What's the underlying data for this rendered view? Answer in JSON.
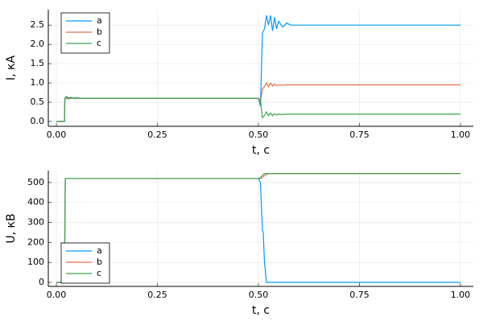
{
  "chart_data": [
    {
      "type": "line",
      "xlabel": "t, c",
      "ylabel": "I, кА",
      "x": [
        0,
        0.02,
        0.021,
        0.025,
        0.03,
        0.035,
        0.04,
        0.05,
        0.06,
        0.1,
        0.5,
        0.505,
        0.51,
        0.515,
        0.52,
        0.525,
        0.53,
        0.535,
        0.54,
        0.545,
        0.55,
        0.56,
        0.57,
        0.58,
        0.6,
        0.7,
        1.0
      ],
      "series": [
        {
          "name": "a",
          "color": "#009af9",
          "values": [
            0,
            0,
            0.6,
            0.65,
            0.6,
            0.63,
            0.6,
            0.62,
            0.6,
            0.6,
            0.6,
            0.4,
            2.3,
            2.4,
            2.75,
            2.5,
            2.75,
            2.35,
            2.7,
            2.4,
            2.6,
            2.45,
            2.55,
            2.5,
            2.5,
            2.5,
            2.5
          ]
        },
        {
          "name": "b",
          "color": "#e26f46",
          "values": [
            0,
            0,
            0.6,
            0.6,
            0.62,
            0.6,
            0.6,
            0.61,
            0.6,
            0.6,
            0.6,
            0.5,
            0.85,
            0.9,
            1.0,
            0.9,
            1.0,
            0.92,
            0.97,
            0.93,
            0.95,
            0.94,
            0.95,
            0.95,
            0.95,
            0.95,
            0.95
          ]
        },
        {
          "name": "c",
          "color": "#3da44d",
          "values": [
            0,
            0,
            0.6,
            0.63,
            0.58,
            0.62,
            0.6,
            0.6,
            0.6,
            0.6,
            0.6,
            0.55,
            0.1,
            0.15,
            0.25,
            0.15,
            0.22,
            0.15,
            0.2,
            0.17,
            0.19,
            0.18,
            0.19,
            0.19,
            0.19,
            0.19,
            0.19
          ]
        }
      ],
      "xlim": [
        -0.02,
        1.032
      ],
      "ylim": [
        -0.125,
        2.9
      ],
      "xticks": [
        {
          "value": 0,
          "label": "0.00"
        },
        {
          "value": 0.25,
          "label": "0.25"
        },
        {
          "value": 0.5,
          "label": "0.50"
        },
        {
          "value": 0.75,
          "label": "0.75"
        },
        {
          "value": 1,
          "label": "1.00"
        }
      ],
      "yticks": [
        {
          "value": 0,
          "label": "0.0"
        },
        {
          "value": 0.5,
          "label": "0.5"
        },
        {
          "value": 1,
          "label": "1.0"
        },
        {
          "value": 1.5,
          "label": "1.5"
        },
        {
          "value": 2,
          "label": "2.0"
        },
        {
          "value": 2.5,
          "label": "2.5"
        }
      ],
      "grid": true,
      "legend": "top-left"
    },
    {
      "type": "line",
      "xlabel": "t, c",
      "ylabel": "U, кВ",
      "x": [
        0,
        0.02,
        0.022,
        0.025,
        0.5,
        0.505,
        0.51,
        0.512,
        0.515,
        0.52,
        0.525,
        0.53,
        1.0
      ],
      "series": [
        {
          "name": "a",
          "color": "#009af9",
          "values": [
            0,
            0,
            520,
            520,
            520,
            500,
            260,
            250,
            100,
            0,
            0,
            0,
            0
          ]
        },
        {
          "name": "b",
          "color": "#e26f46",
          "values": [
            0,
            0,
            520,
            520,
            520,
            520,
            525,
            530,
            535,
            540,
            545,
            545,
            545
          ]
        },
        {
          "name": "c",
          "color": "#3da44d",
          "values": [
            0,
            0,
            520,
            520,
            520,
            525,
            535,
            540,
            545,
            545,
            545,
            545,
            545
          ]
        }
      ],
      "xlim": [
        -0.02,
        1.032
      ],
      "ylim": [
        -20,
        560
      ],
      "xticks": [
        {
          "value": 0,
          "label": "0.00"
        },
        {
          "value": 0.25,
          "label": "0.25"
        },
        {
          "value": 0.5,
          "label": "0.50"
        },
        {
          "value": 0.75,
          "label": "0.75"
        },
        {
          "value": 1,
          "label": "1.00"
        }
      ],
      "yticks": [
        0,
        100,
        200,
        300,
        400,
        500
      ],
      "grid": true,
      "legend": "bottom-left"
    }
  ]
}
